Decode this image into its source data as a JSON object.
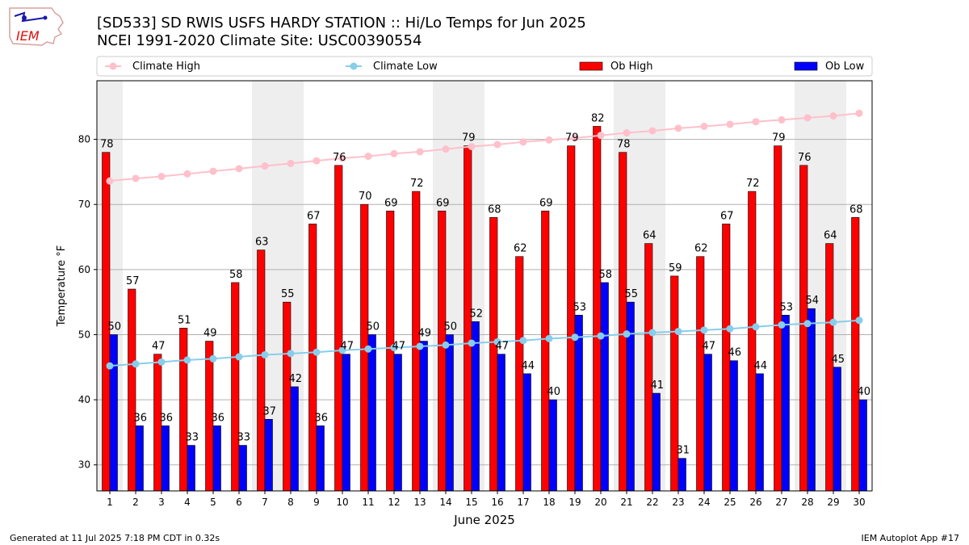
{
  "header": {
    "logo_text": "IEM",
    "title_line1": "[SD533] SD RWIS USFS HARDY STATION :: Hi/Lo Temps for Jun 2025",
    "title_line2": "NCEI 1991-2020 Climate Site: USC00390554"
  },
  "footer": {
    "generated": "Generated at 11 Jul 2025 7:18 PM CDT in 0.32s",
    "app": "IEM Autoplot App #17"
  },
  "colors": {
    "ob_high": "#ff0000",
    "ob_low": "#0000ff",
    "climate_high": "#ffc0cb",
    "climate_low": "#87ceeb",
    "weekend_shade": "#eeeeee"
  },
  "chart_data": {
    "type": "bar",
    "xlabel": "June 2025",
    "ylabel": "Temperature °F",
    "ylim": [
      26,
      89
    ],
    "yticks": [
      30,
      40,
      50,
      60,
      70,
      80
    ],
    "grid": "horizontal",
    "legend_placement": "top",
    "categories": [
      1,
      2,
      3,
      4,
      5,
      6,
      7,
      8,
      9,
      10,
      11,
      12,
      13,
      14,
      15,
      16,
      17,
      18,
      19,
      20,
      21,
      22,
      23,
      24,
      25,
      26,
      27,
      28,
      29,
      30
    ],
    "shaded_days": [
      1,
      7,
      8,
      14,
      15,
      21,
      22,
      28,
      29
    ],
    "series": [
      {
        "name": "Ob High",
        "kind": "bar",
        "values": [
          78,
          57,
          47,
          51,
          49,
          58,
          63,
          55,
          67,
          76,
          70,
          69,
          72,
          69,
          79,
          68,
          62,
          69,
          79,
          82,
          78,
          64,
          59,
          62,
          67,
          72,
          79,
          76,
          64,
          68
        ]
      },
      {
        "name": "Ob Low",
        "kind": "bar",
        "values": [
          50,
          36,
          36,
          33,
          36,
          33,
          37,
          42,
          36,
          47,
          50,
          47,
          49,
          50,
          52,
          47,
          44,
          40,
          53,
          58,
          55,
          41,
          31,
          47,
          46,
          44,
          53,
          54,
          45,
          40
        ]
      },
      {
        "name": "Climate High",
        "kind": "line",
        "values": [
          73.6,
          74.0,
          74.3,
          74.7,
          75.1,
          75.5,
          75.9,
          76.3,
          76.7,
          77.1,
          77.4,
          77.8,
          78.1,
          78.5,
          78.9,
          79.2,
          79.6,
          79.9,
          80.2,
          80.6,
          81.0,
          81.3,
          81.7,
          82.0,
          82.3,
          82.7,
          83.0,
          83.3,
          83.6,
          84.0
        ]
      },
      {
        "name": "Climate Low",
        "kind": "line",
        "values": [
          45.2,
          45.5,
          45.8,
          46.1,
          46.3,
          46.6,
          46.9,
          47.1,
          47.3,
          47.6,
          47.8,
          48.0,
          48.2,
          48.4,
          48.7,
          48.9,
          49.1,
          49.4,
          49.6,
          49.8,
          50.1,
          50.3,
          50.5,
          50.7,
          50.9,
          51.2,
          51.5,
          51.7,
          51.9,
          52.2
        ]
      }
    ]
  }
}
